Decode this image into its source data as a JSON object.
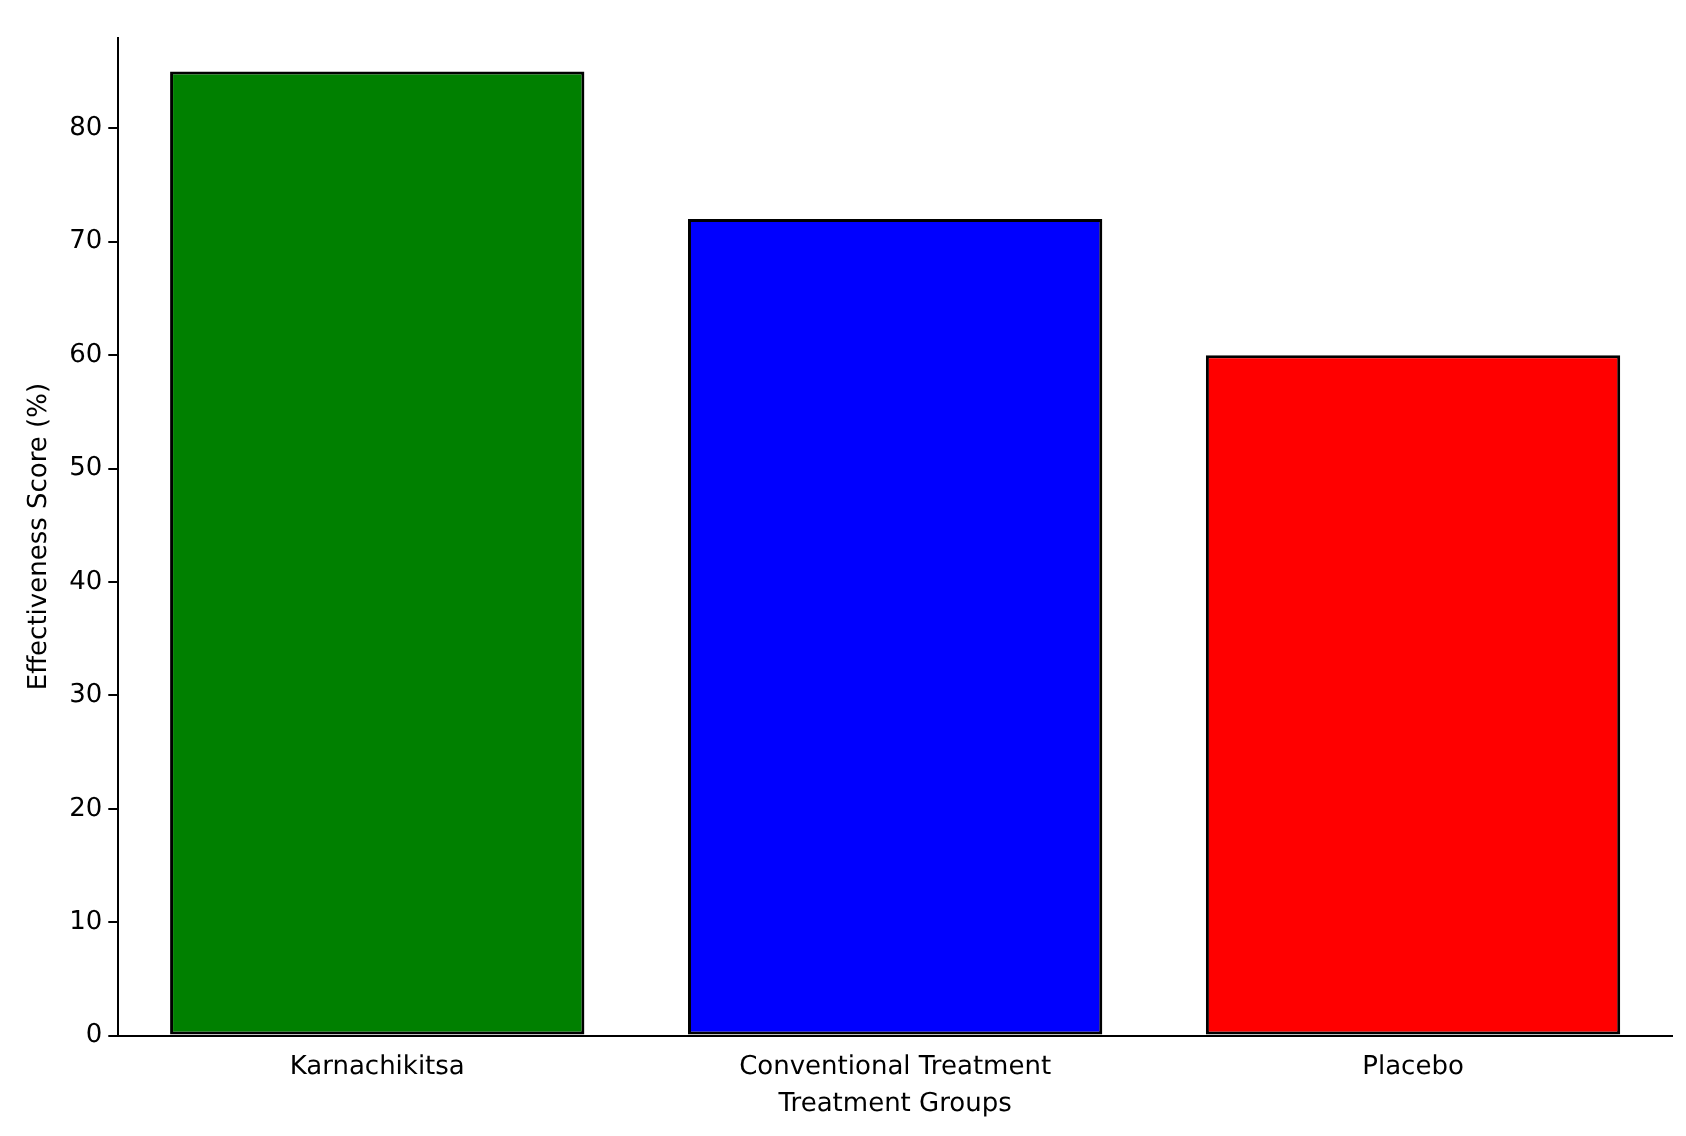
{
  "chart_data": {
    "type": "bar",
    "xlabel": "Treatment Groups",
    "ylabel": "Effectiveness Score (%)",
    "categories": [
      "Karnachikitsa",
      "Conventional Treatment",
      "Placebo"
    ],
    "values": [
      85,
      72,
      60
    ],
    "colors": [
      "#008000",
      "#0000ff",
      "#ff0000"
    ],
    "ylim": [
      0,
      88
    ],
    "yticks": [
      0,
      10,
      20,
      30,
      40,
      50,
      60,
      70,
      80
    ],
    "grid": false
  }
}
